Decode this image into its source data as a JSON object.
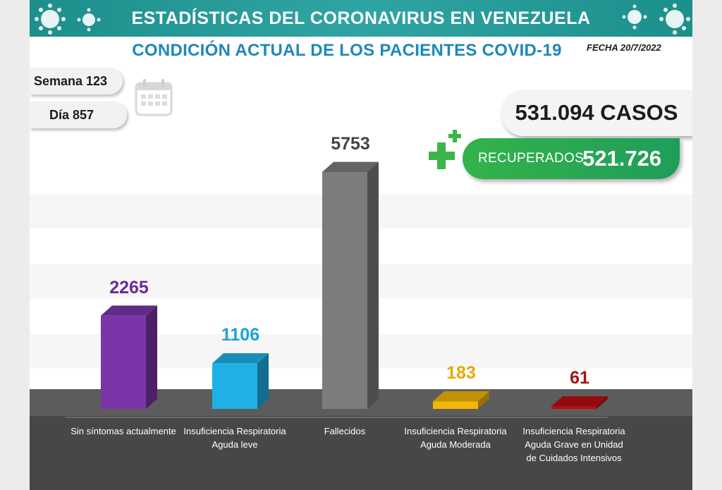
{
  "header": {
    "title": "ESTADÍSTICAS DEL CORONAVIRUS EN VENEZUELA",
    "subtitle": "CONDICIÓN ACTUAL DE LOS PACIENTES COVID-19",
    "date": "FECHA 20/7/2022",
    "band_color": "#1c8f8c"
  },
  "week": {
    "text": "Semana 123"
  },
  "day": {
    "text": "Día 857"
  },
  "summary": {
    "cases_text": "531.094 CASOS",
    "recovered_label": "RECUPERADOS",
    "recovered_value": "521.726",
    "recovered_color": "#2ea84f"
  },
  "icons": {
    "calendar": "calendar-icon",
    "plus": "plus-icon",
    "virus": "virus-icon"
  },
  "chart_data": {
    "type": "bar",
    "categories": [
      "Sin síntomas actualmente",
      "Insuficiencia Respiratoria Aguda leve",
      "Fallecidos",
      "Insuficiencia Respiratoria Aguda Moderada",
      "Insuficiencia Respiratoria Aguda Grave en Unidad de Cuidados Intensivos"
    ],
    "values": [
      2265,
      1106,
      5753,
      183,
      61
    ],
    "value_labels": [
      "2265",
      "1106",
      "5753",
      "183",
      "61"
    ],
    "colors": [
      "#7a36a8",
      "#1fb1e6",
      "#7c7c7c",
      "#f2b705",
      "#b80f0f"
    ],
    "label_colors": [
      "#6a2a98",
      "#1aa3d8",
      "#444444",
      "#e8a800",
      "#a81010"
    ],
    "title": "",
    "xlabel": "",
    "ylabel": "",
    "grid": false,
    "legend": "none"
  }
}
